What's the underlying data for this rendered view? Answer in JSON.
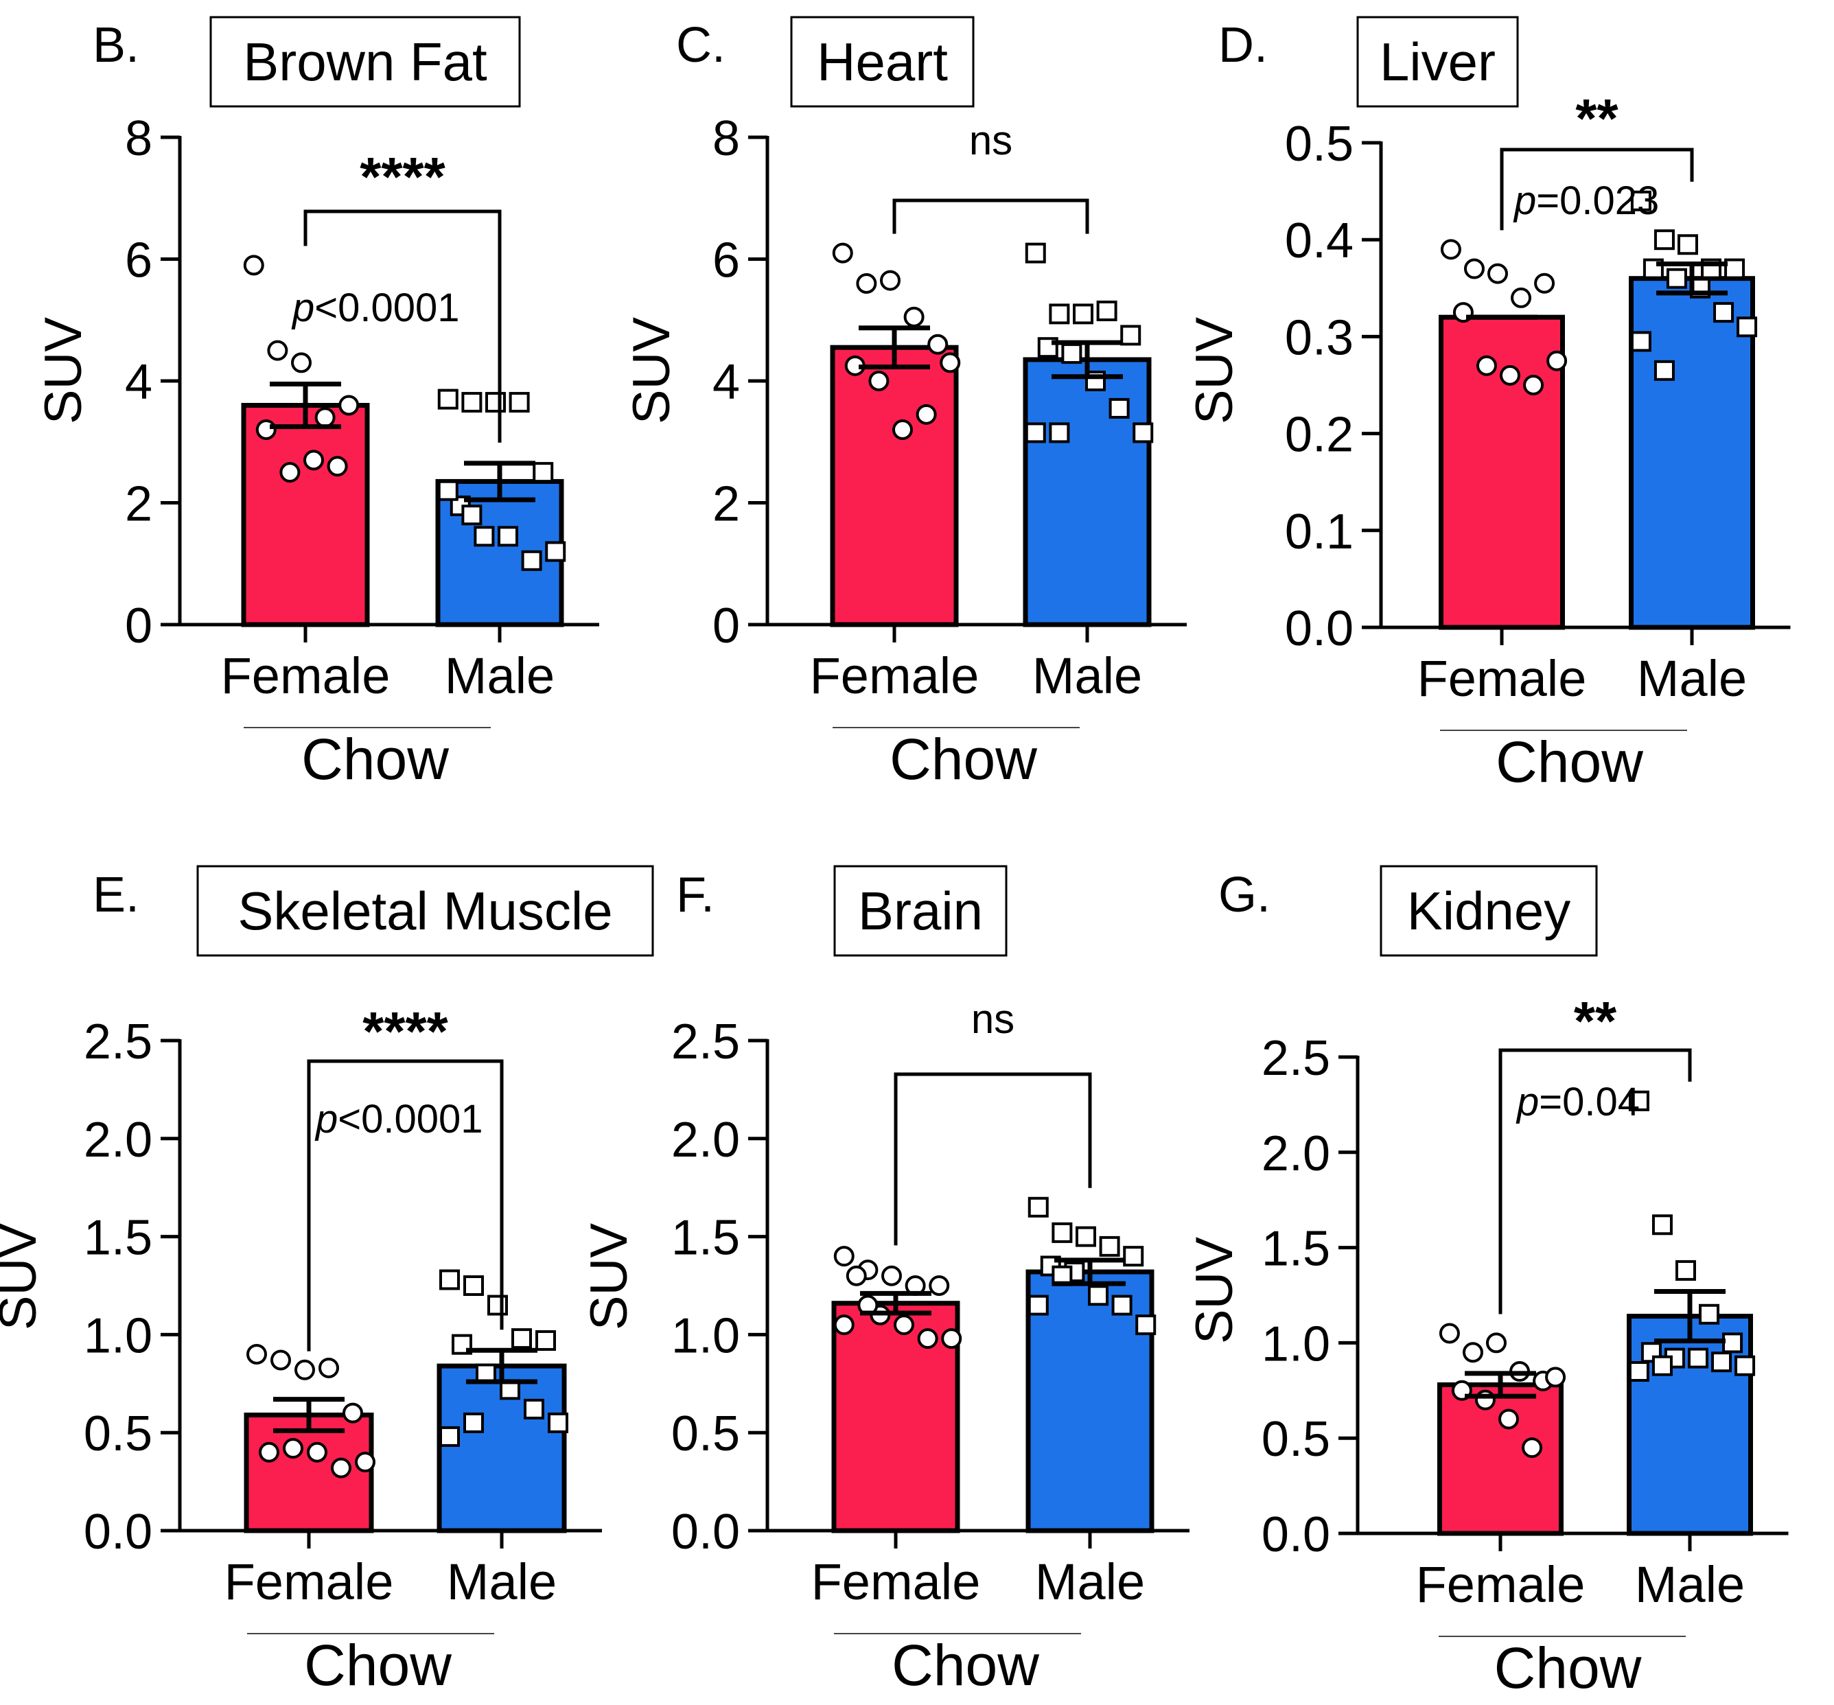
{
  "colors": {
    "female_bar": "#fb1f4f",
    "male_bar": "#1f73e8",
    "ink": "#000000"
  },
  "chart_data": [
    {
      "type": "bar",
      "panel_letter": "B.",
      "title": "Brown Fat",
      "ylabel": "SUV",
      "ylim": [
        0,
        8
      ],
      "yticks": [
        "0",
        "2",
        "4",
        "6",
        "8"
      ],
      "categories": [
        "Female",
        "Male"
      ],
      "group_label": "Chow",
      "means": [
        3.6,
        2.35
      ],
      "sem": [
        0.35,
        0.3
      ],
      "points": [
        [
          5.9,
          4.5,
          4.3,
          3.4,
          3.6,
          3.2,
          2.5,
          2.7,
          2.6
        ],
        [
          3.7,
          3.65,
          3.65,
          3.65,
          2.5,
          1.95,
          1.45,
          1.45,
          1.05,
          1.2,
          2.2,
          1.8
        ]
      ],
      "significance": "****",
      "p_value_prefix": "p",
      "p_value_rest": "<0.0001"
    },
    {
      "type": "bar",
      "panel_letter": "C.",
      "title": "Heart",
      "ylabel": "SUV",
      "ylim": [
        0,
        8
      ],
      "yticks": [
        "0",
        "2",
        "4",
        "6",
        "8"
      ],
      "categories": [
        "Female",
        "Male"
      ],
      "group_label": "Chow",
      "means": [
        4.55,
        4.35
      ],
      "sem": [
        0.32,
        0.28
      ],
      "points": [
        [
          6.1,
          5.6,
          5.65,
          5.05,
          4.6,
          4.25,
          4.0,
          3.2,
          3.45,
          4.3
        ],
        [
          6.1,
          5.1,
          5.1,
          5.15,
          4.75,
          4.55,
          4.45,
          4.0,
          3.55,
          3.15,
          3.15,
          3.15
        ]
      ],
      "significance": "ns"
    },
    {
      "type": "bar",
      "panel_letter": "D.",
      "title": "Liver",
      "ylabel": "SUV",
      "ylim": [
        0,
        0.5
      ],
      "yticks": [
        "0.0",
        "0.1",
        "0.2",
        "0.3",
        "0.4",
        "0.5"
      ],
      "categories": [
        "Female",
        "Male"
      ],
      "group_label": "Chow",
      "means": [
        0.32,
        0.36
      ],
      "sem": [
        0.0,
        0.015
      ],
      "points": [
        [
          0.39,
          0.37,
          0.365,
          0.34,
          0.355,
          0.325,
          0.27,
          0.26,
          0.25,
          0.275
        ],
        [
          0.44,
          0.4,
          0.395,
          0.37,
          0.37,
          0.37,
          0.36,
          0.35,
          0.325,
          0.31,
          0.295,
          0.265
        ]
      ],
      "significance": "**",
      "p_value_prefix": "p",
      "p_value_rest": "=0.023"
    },
    {
      "type": "bar",
      "panel_letter": "E.",
      "title": "Skeletal Muscle",
      "ylabel": "SUV",
      "ylim": [
        0,
        2.5
      ],
      "yticks": [
        "0.0",
        "0.5",
        "1.0",
        "1.5",
        "2.0",
        "2.5"
      ],
      "categories": [
        "Female",
        "Male"
      ],
      "group_label": "Chow",
      "means": [
        0.59,
        0.84
      ],
      "sem": [
        0.08,
        0.08
      ],
      "points": [
        [
          0.9,
          0.87,
          0.82,
          0.83,
          0.6,
          0.4,
          0.42,
          0.4,
          0.32,
          0.35
        ],
        [
          1.28,
          1.25,
          1.15,
          0.98,
          0.97,
          0.95,
          0.8,
          0.72,
          0.62,
          0.55,
          0.48,
          0.55
        ]
      ],
      "significance": "****",
      "p_value_prefix": "p",
      "p_value_rest": "<0.0001"
    },
    {
      "type": "bar",
      "panel_letter": "F.",
      "title": "Brain",
      "ylabel": "SUV",
      "ylim": [
        0,
        2.5
      ],
      "yticks": [
        "0.0",
        "0.5",
        "1.0",
        "1.5",
        "2.0",
        "2.5"
      ],
      "categories": [
        "Female",
        "Male"
      ],
      "group_label": "Chow",
      "means": [
        1.16,
        1.32
      ],
      "sem": [
        0.05,
        0.06
      ],
      "points": [
        [
          1.4,
          1.33,
          1.3,
          1.25,
          1.25,
          1.3,
          1.1,
          1.05,
          0.98,
          0.98,
          1.05,
          1.15
        ],
        [
          1.65,
          1.52,
          1.5,
          1.45,
          1.4,
          1.35,
          1.32,
          1.2,
          1.15,
          1.05,
          1.15,
          1.3
        ]
      ],
      "significance": "ns"
    },
    {
      "type": "bar",
      "panel_letter": "G.",
      "title": "Kidney",
      "ylabel": "SUV",
      "ylim": [
        0,
        2.5
      ],
      "yticks": [
        "0.0",
        "0.5",
        "1.0",
        "1.5",
        "2.0",
        "2.5"
      ],
      "categories": [
        "Female",
        "Male"
      ],
      "group_label": "Chow",
      "means": [
        0.78,
        1.14
      ],
      "sem": [
        0.06,
        0.13
      ],
      "points": [
        [
          1.05,
          0.95,
          1.0,
          0.85,
          0.8,
          0.75,
          0.7,
          0.6,
          0.45,
          0.82
        ],
        [
          2.27,
          1.62,
          1.38,
          1.15,
          1.0,
          0.95,
          0.92,
          0.92,
          0.9,
          0.88,
          0.85,
          0.88
        ]
      ],
      "significance": "**",
      "p_value_prefix": "p",
      "p_value_rest": "=0.04"
    }
  ]
}
